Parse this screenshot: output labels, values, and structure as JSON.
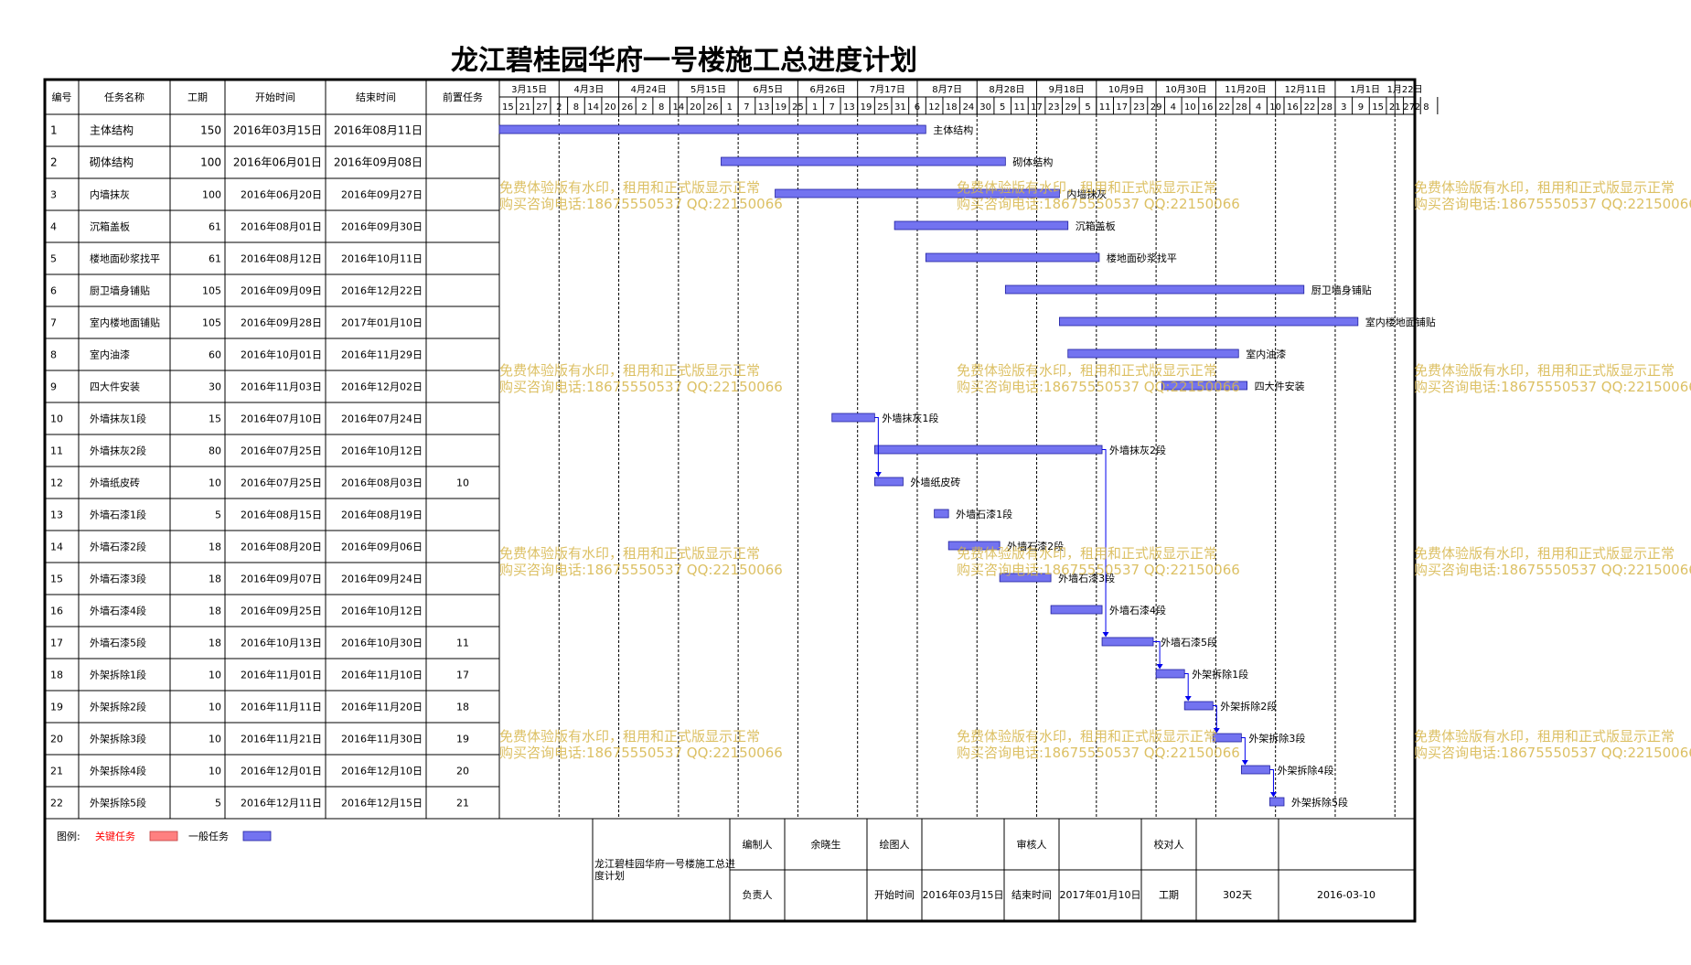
{
  "chart_data": {
    "type": "gantt",
    "title": "龙江碧桂园华府一号楼施工总进度计划",
    "columns": [
      "编号",
      "任务名称",
      "工期",
      "开始时间",
      "结束时间",
      "前置任务"
    ],
    "month_ticks": [
      "3月15日",
      "4月3日",
      "4月24日",
      "5月15日",
      "6月5日",
      "6月26日",
      "7月17日",
      "8月7日",
      "8月28日",
      "9月18日",
      "10月9日",
      "10月30日",
      "11月20日",
      "12月11日",
      "1月1日",
      "1月22日"
    ],
    "day_ticks": [
      "15",
      "21",
      "27",
      "2",
      "8",
      "14",
      "20",
      "26",
      "2",
      "8",
      "14",
      "20",
      "26",
      "1",
      "7",
      "13",
      "19",
      "25",
      "1",
      "7",
      "13",
      "19",
      "25",
      "31",
      "6",
      "12",
      "18",
      "24",
      "30",
      "5",
      "11",
      "17",
      "23",
      "29",
      "5",
      "11",
      "17",
      "23",
      "29",
      "4",
      "10",
      "16",
      "22",
      "28",
      "4",
      "10",
      "16",
      "22",
      "28",
      "3",
      "9",
      "15",
      "21",
      "27",
      "2",
      "8"
    ],
    "x_start": "2016-03-15",
    "x_end": "2017-01-30",
    "tasks": [
      {
        "id": "1",
        "name": "主体结构",
        "duration": "150",
        "start": "2016年03月15日",
        "end": "2016年08月11日",
        "pred": "",
        "start_iso": "2016-03-15",
        "end_iso": "2016-08-11"
      },
      {
        "id": "2",
        "name": "砌体结构",
        "duration": "100",
        "start": "2016年06月01日",
        "end": "2016年09月08日",
        "pred": "",
        "start_iso": "2016-06-01",
        "end_iso": "2016-09-08"
      },
      {
        "id": "3",
        "name": "内墙抹灰",
        "duration": "100",
        "start": "2016年06月20日",
        "end": "2016年09月27日",
        "pred": "",
        "start_iso": "2016-06-20",
        "end_iso": "2016-09-27"
      },
      {
        "id": "4",
        "name": "沉箱盖板",
        "duration": "61",
        "start": "2016年08月01日",
        "end": "2016年09月30日",
        "pred": "",
        "start_iso": "2016-08-01",
        "end_iso": "2016-09-30"
      },
      {
        "id": "5",
        "name": "楼地面砂浆找平",
        "duration": "61",
        "start": "2016年08月12日",
        "end": "2016年10月11日",
        "pred": "",
        "start_iso": "2016-08-12",
        "end_iso": "2016-10-11"
      },
      {
        "id": "6",
        "name": "厨卫墙身铺贴",
        "duration": "105",
        "start": "2016年09月09日",
        "end": "2016年12月22日",
        "pred": "",
        "start_iso": "2016-09-09",
        "end_iso": "2016-12-22"
      },
      {
        "id": "7",
        "name": "室内楼地面铺贴",
        "duration": "105",
        "start": "2016年09月28日",
        "end": "2017年01月10日",
        "pred": "",
        "start_iso": "2016-09-28",
        "end_iso": "2017-01-10"
      },
      {
        "id": "8",
        "name": "室内油漆",
        "duration": "60",
        "start": "2016年10月01日",
        "end": "2016年11月29日",
        "pred": "",
        "start_iso": "2016-10-01",
        "end_iso": "2016-11-29"
      },
      {
        "id": "9",
        "name": "四大件安装",
        "duration": "30",
        "start": "2016年11月03日",
        "end": "2016年12月02日",
        "pred": "",
        "start_iso": "2016-11-03",
        "end_iso": "2016-12-02"
      },
      {
        "id": "10",
        "name": "外墙抹灰1段",
        "duration": "15",
        "start": "2016年07月10日",
        "end": "2016年07月24日",
        "pred": "",
        "start_iso": "2016-07-10",
        "end_iso": "2016-07-24"
      },
      {
        "id": "11",
        "name": "外墙抹灰2段",
        "duration": "80",
        "start": "2016年07月25日",
        "end": "2016年10月12日",
        "pred": "",
        "start_iso": "2016-07-25",
        "end_iso": "2016-10-12"
      },
      {
        "id": "12",
        "name": "外墙纸皮砖",
        "duration": "10",
        "start": "2016年07月25日",
        "end": "2016年08月03日",
        "pred": "10",
        "start_iso": "2016-07-25",
        "end_iso": "2016-08-03"
      },
      {
        "id": "13",
        "name": "外墙石漆1段",
        "duration": "5",
        "start": "2016年08月15日",
        "end": "2016年08月19日",
        "pred": "",
        "start_iso": "2016-08-15",
        "end_iso": "2016-08-19"
      },
      {
        "id": "14",
        "name": "外墙石漆2段",
        "duration": "18",
        "start": "2016年08月20日",
        "end": "2016年09月06日",
        "pred": "",
        "start_iso": "2016-08-20",
        "end_iso": "2016-09-06"
      },
      {
        "id": "15",
        "name": "外墙石漆3段",
        "duration": "18",
        "start": "2016年09月07日",
        "end": "2016年09月24日",
        "pred": "",
        "start_iso": "2016-09-07",
        "end_iso": "2016-09-24"
      },
      {
        "id": "16",
        "name": "外墙石漆4段",
        "duration": "18",
        "start": "2016年09月25日",
        "end": "2016年10月12日",
        "pred": "",
        "start_iso": "2016-09-25",
        "end_iso": "2016-10-12"
      },
      {
        "id": "17",
        "name": "外墙石漆5段",
        "duration": "18",
        "start": "2016年10月13日",
        "end": "2016年10月30日",
        "pred": "11",
        "start_iso": "2016-10-13",
        "end_iso": "2016-10-30"
      },
      {
        "id": "18",
        "name": "外架拆除1段",
        "duration": "10",
        "start": "2016年11月01日",
        "end": "2016年11月10日",
        "pred": "17",
        "start_iso": "2016-11-01",
        "end_iso": "2016-11-10"
      },
      {
        "id": "19",
        "name": "外架拆除2段",
        "duration": "10",
        "start": "2016年11月11日",
        "end": "2016年11月20日",
        "pred": "18",
        "start_iso": "2016-11-11",
        "end_iso": "2016-11-20"
      },
      {
        "id": "20",
        "name": "外架拆除3段",
        "duration": "10",
        "start": "2016年11月21日",
        "end": "2016年11月30日",
        "pred": "19",
        "start_iso": "2016-11-21",
        "end_iso": "2016-11-30"
      },
      {
        "id": "21",
        "name": "外架拆除4段",
        "duration": "10",
        "start": "2016年12月01日",
        "end": "2016年12月10日",
        "pred": "20",
        "start_iso": "2016-12-01",
        "end_iso": "2016-12-10"
      },
      {
        "id": "22",
        "name": "外架拆除5段",
        "duration": "5",
        "start": "2016年12月11日",
        "end": "2016年12月15日",
        "pred": "21",
        "start_iso": "2016-12-11",
        "end_iso": "2016-12-15"
      }
    ],
    "links": [
      [
        "10",
        "12"
      ],
      [
        "11",
        "17"
      ],
      [
        "17",
        "18"
      ],
      [
        "18",
        "19"
      ],
      [
        "19",
        "20"
      ],
      [
        "20",
        "21"
      ],
      [
        "21",
        "22"
      ]
    ],
    "bar_color": "#7373f0",
    "critical_color": "#ff8080",
    "link_color": "#0000ee"
  },
  "watermark": {
    "line1": "免费体验版有水印，租用和正式版显示正常",
    "line2": "购买咨询电话:18675550537 QQ:22150066",
    "color": "#d7b64a"
  },
  "legend": {
    "label": "图例:",
    "critical": "关键任务",
    "normal": "一般任务",
    "critical_text_color": "#ff0000"
  },
  "footer": {
    "project": "龙江碧桂园华府一号楼施工总进度计划",
    "compiler_label": "编制人",
    "compiler": "余晓生",
    "drawer_label": "绘图人",
    "drawer": "",
    "reviewer_label": "审核人",
    "reviewer": "",
    "checker_label": "校对人",
    "checker": "",
    "owner_label": "负责人",
    "owner": "",
    "start_label": "开始时间",
    "start": "2016年03月15日",
    "end_label": "结束时间",
    "end": "2017年01月10日",
    "duration_label": "工期",
    "duration": "302天",
    "date": "2016-03-10"
  }
}
